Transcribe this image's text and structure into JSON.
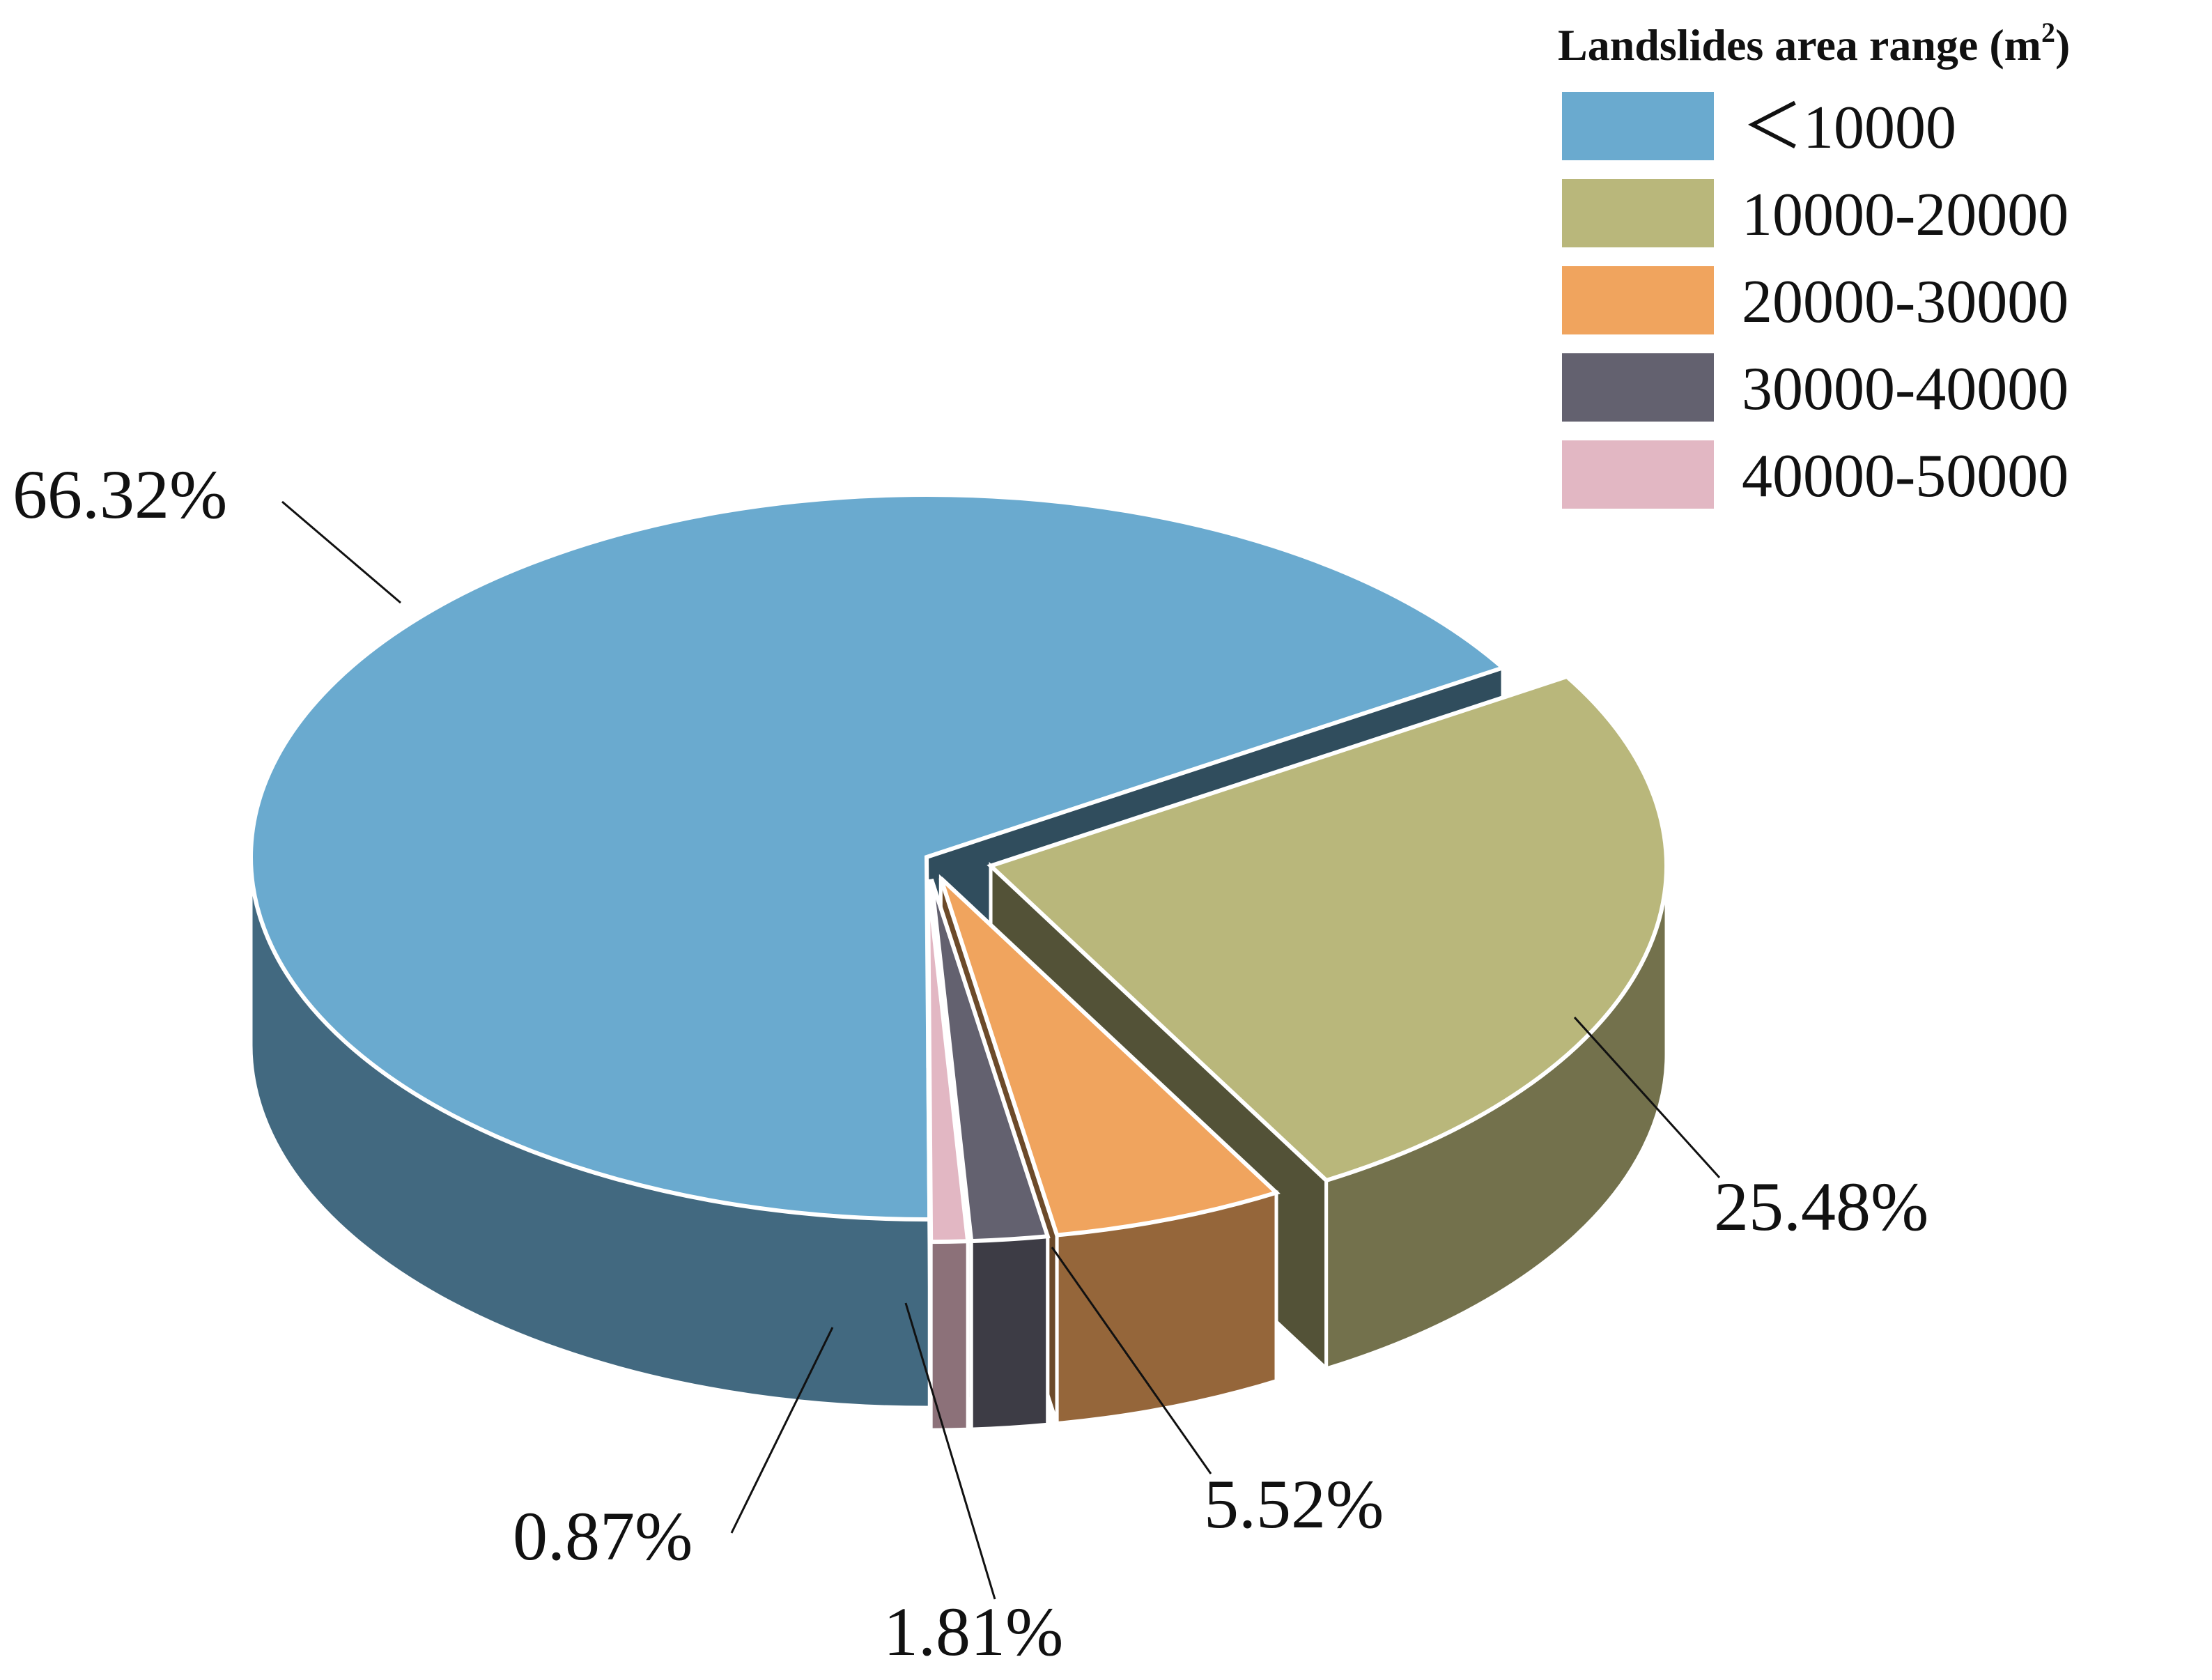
{
  "chart_data": {
    "type": "pie",
    "title": "",
    "legend": {
      "title": "Landslides area range (m",
      "title_sup": "2",
      "title_close": ")",
      "position": "top-right"
    },
    "categories": [
      "<10000",
      "10000-20000",
      "20000-30000",
      "30000-40000",
      "40000-50000"
    ],
    "legend_labels": [
      "＜10000",
      "10000-20000",
      "20000-30000",
      "30000-40000",
      "40000-50000"
    ],
    "values": [
      66.32,
      25.48,
      5.52,
      1.81,
      0.87
    ],
    "data_labels": [
      "66.32%",
      "25.48%",
      "5.52%",
      "1.81%",
      "0.87%"
    ],
    "colors": [
      "#6aaacf",
      "#b9b77b",
      "#f0a45e",
      "#63616f",
      "#e2b7c3"
    ],
    "style": "3d-exploded"
  }
}
